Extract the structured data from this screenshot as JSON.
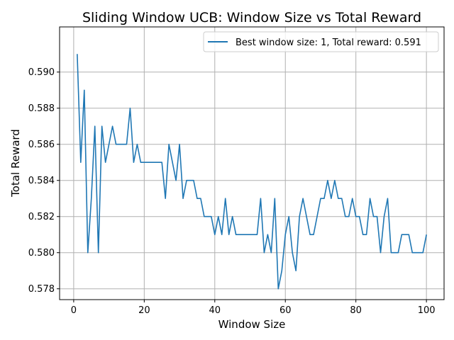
{
  "chart_data": {
    "type": "line",
    "title": "Sliding Window UCB: Window Size vs Total Reward",
    "xlabel": "Window Size",
    "ylabel": "Total Reward",
    "xlim": [
      -4,
      105
    ],
    "ylim": [
      0.5774,
      0.5925
    ],
    "xticks": [
      0,
      20,
      40,
      60,
      80,
      100
    ],
    "xtick_labels": [
      "0",
      "20",
      "40",
      "60",
      "80",
      "100"
    ],
    "yticks": [
      0.578,
      0.58,
      0.582,
      0.584,
      0.586,
      0.588,
      0.59
    ],
    "ytick_labels": [
      "0.578",
      "0.580",
      "0.582",
      "0.584",
      "0.586",
      "0.588",
      "0.590"
    ],
    "grid": true,
    "legend_position": "top-right",
    "series": [
      {
        "name": "Best window size: 1, Total reward: 0.591",
        "color": "#1f77b4",
        "x": [
          1,
          2,
          3,
          4,
          5,
          6,
          7,
          8,
          9,
          10,
          11,
          12,
          13,
          14,
          15,
          16,
          17,
          18,
          19,
          20,
          21,
          22,
          23,
          24,
          25,
          26,
          27,
          28,
          29,
          30,
          31,
          32,
          33,
          34,
          35,
          36,
          37,
          38,
          39,
          40,
          41,
          42,
          43,
          44,
          45,
          46,
          47,
          48,
          49,
          50,
          51,
          52,
          53,
          54,
          55,
          56,
          57,
          58,
          59,
          60,
          61,
          62,
          63,
          64,
          65,
          66,
          67,
          68,
          69,
          70,
          71,
          72,
          73,
          74,
          75,
          76,
          77,
          78,
          79,
          80,
          81,
          82,
          83,
          84,
          85,
          86,
          87,
          88,
          89,
          90,
          91,
          92,
          93,
          94,
          95,
          96,
          97,
          98,
          99,
          100
        ],
        "values": [
          0.591,
          0.585,
          0.589,
          0.58,
          0.583,
          0.587,
          0.58,
          0.587,
          0.585,
          0.586,
          0.587,
          0.586,
          0.586,
          0.586,
          0.586,
          0.588,
          0.585,
          0.586,
          0.585,
          0.585,
          0.585,
          0.585,
          0.585,
          0.585,
          0.585,
          0.583,
          0.586,
          0.585,
          0.584,
          0.586,
          0.583,
          0.584,
          0.584,
          0.584,
          0.583,
          0.583,
          0.582,
          0.582,
          0.582,
          0.581,
          0.582,
          0.581,
          0.583,
          0.581,
          0.582,
          0.581,
          0.581,
          0.581,
          0.581,
          0.581,
          0.581,
          0.581,
          0.583,
          0.58,
          0.581,
          0.58,
          0.583,
          0.578,
          0.579,
          0.581,
          0.582,
          0.58,
          0.579,
          0.582,
          0.583,
          0.582,
          0.581,
          0.581,
          0.582,
          0.583,
          0.583,
          0.584,
          0.583,
          0.584,
          0.583,
          0.583,
          0.582,
          0.582,
          0.583,
          0.582,
          0.582,
          0.581,
          0.581,
          0.583,
          0.582,
          0.582,
          0.58,
          0.582,
          0.583,
          0.58,
          0.58,
          0.58,
          0.581,
          0.581,
          0.581,
          0.58,
          0.58,
          0.58,
          0.58,
          0.581
        ]
      }
    ]
  }
}
